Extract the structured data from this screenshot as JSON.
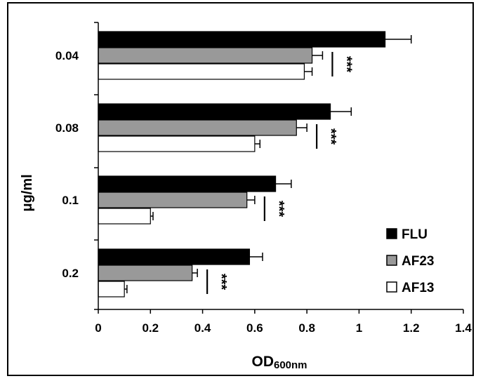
{
  "chart_data": {
    "type": "bar",
    "orientation": "horizontal",
    "categories": [
      "0.04",
      "0.08",
      "0.1",
      "0.2"
    ],
    "series": [
      {
        "name": "FLU",
        "color": "#000000",
        "values": [
          1.1,
          0.89,
          0.68,
          0.58
        ],
        "errors": [
          0.1,
          0.08,
          0.06,
          0.05
        ]
      },
      {
        "name": "AF23",
        "color": "#999999",
        "values": [
          0.82,
          0.76,
          0.57,
          0.36
        ],
        "errors": [
          0.04,
          0.04,
          0.03,
          0.02
        ]
      },
      {
        "name": "AF13",
        "color": "#ffffff",
        "values": [
          0.79,
          0.6,
          0.2,
          0.1
        ],
        "errors": [
          0.03,
          0.02,
          0.01,
          0.01
        ]
      }
    ],
    "significance": [
      "***",
      "***",
      "***",
      "***"
    ],
    "xlabel_main": "OD",
    "xlabel_sub": "600nm",
    "ylabel": "μg/ml",
    "xlim": [
      0,
      1.4
    ],
    "xticks": [
      "0",
      "0.2",
      "0.4",
      "0.6",
      "0.8",
      "1",
      "1.2",
      "1.4"
    ],
    "grid": false,
    "legend_position": "bottom-right"
  }
}
